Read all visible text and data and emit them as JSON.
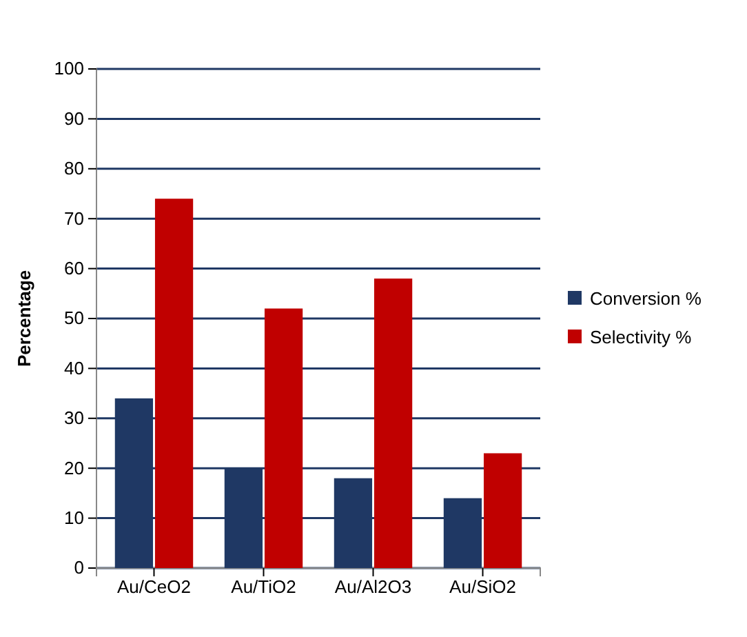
{
  "chart_data": {
    "type": "bar",
    "ylabel": "Percentage",
    "categories": [
      "Au/CeO2",
      "Au/TiO2",
      "Au/Al2O3",
      "Au/SiO2"
    ],
    "series": [
      {
        "name": "Conversion %",
        "color": "#1f3864",
        "values": [
          34,
          20,
          18,
          14
        ]
      },
      {
        "name": "Selectivity %",
        "color": "#c00000",
        "values": [
          74,
          52,
          58,
          23
        ]
      }
    ],
    "ylim": [
      0,
      100
    ],
    "yticks": [
      0,
      10,
      20,
      30,
      40,
      50,
      60,
      70,
      80,
      90,
      100
    ],
    "grid": "y",
    "legend": "right"
  }
}
